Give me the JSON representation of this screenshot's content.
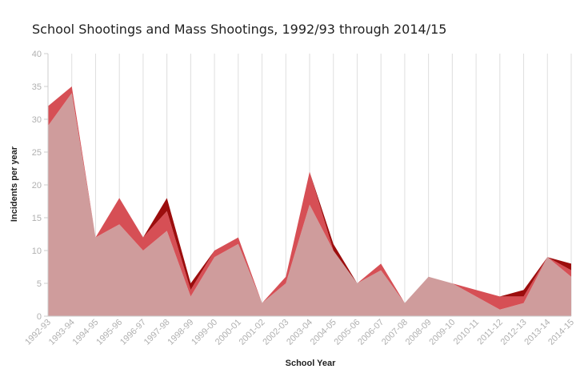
{
  "chart_data": {
    "type": "area",
    "title": "School Shootings and Mass Shootings, 1992/93 through 2014/15",
    "xlabel": "School Year",
    "ylabel": "Incidents per year",
    "ylim": [
      0,
      40
    ],
    "yticks": [
      0,
      5,
      10,
      15,
      20,
      25,
      30,
      35,
      40
    ],
    "categories": [
      "1992-93",
      "1993-94",
      "1994-95",
      "1995-96",
      "1996-97",
      "1997-98",
      "1998-99",
      "1999-00",
      "2000-01",
      "2001-02",
      "2002-03",
      "2003-04",
      "2004-05",
      "2005-06",
      "2006-07",
      "2007-08",
      "2008-09",
      "2009-10",
      "2010-11",
      "2011-12",
      "2012-13",
      "2013-14",
      "2014-15"
    ],
    "stacked": true,
    "grid": "vertical",
    "legend": "none",
    "series": [
      {
        "color": "#cf9c9c",
        "values": [
          29,
          34,
          12,
          14,
          10,
          13,
          3,
          9,
          11,
          2,
          5,
          17,
          10,
          5,
          7,
          2,
          6,
          5,
          3,
          1,
          2,
          9,
          6
        ]
      },
      {
        "color": "#d64f55",
        "values": [
          3,
          1,
          0,
          4,
          2,
          3,
          1,
          1,
          1,
          0,
          1,
          5,
          0,
          0,
          1,
          0,
          0,
          0,
          1,
          2,
          1,
          0,
          1
        ]
      },
      {
        "color": "#9c0d0d",
        "values": [
          0,
          0,
          0,
          0,
          0,
          2,
          1,
          0,
          0,
          0,
          0,
          0,
          1,
          0,
          0,
          0,
          0,
          0,
          0,
          0,
          1,
          0,
          1
        ]
      }
    ]
  }
}
